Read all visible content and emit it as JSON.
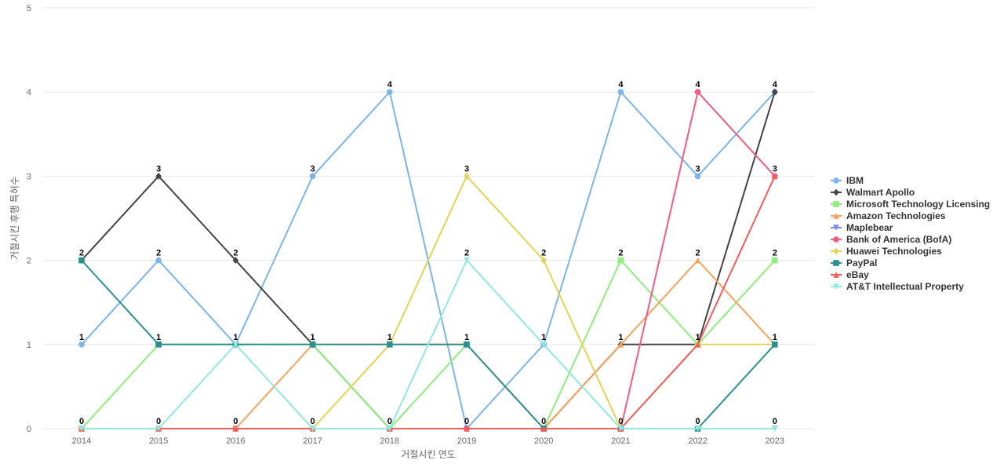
{
  "chart_data": {
    "type": "line",
    "xlabel": "거절시킨 연도",
    "ylabel": "거절시킨 후행 특허수",
    "ylim": [
      0,
      5
    ],
    "yticks": [
      0,
      1,
      2,
      3,
      4,
      5
    ],
    "categories": [
      "2014",
      "2015",
      "2016",
      "2017",
      "2018",
      "2019",
      "2020",
      "2021",
      "2022",
      "2023"
    ],
    "grid": true,
    "legend_position": "right",
    "series": [
      {
        "name": "IBM",
        "color": "#7cb5ec",
        "marker": "circle",
        "values": [
          1,
          2,
          1,
          3,
          4,
          0,
          1,
          4,
          3,
          4
        ]
      },
      {
        "name": "Walmart Apollo",
        "color": "#434348",
        "marker": "diamond",
        "values": [
          2,
          3,
          2,
          1,
          0,
          0,
          0,
          1,
          1,
          4
        ]
      },
      {
        "name": "Microsoft Technology Licensing",
        "color": "#90ed7d",
        "marker": "square",
        "values": [
          0,
          1,
          1,
          1,
          0,
          1,
          0,
          2,
          1,
          2
        ]
      },
      {
        "name": "Amazon Technologies",
        "color": "#f7a35c",
        "marker": "triangle",
        "values": [
          0,
          0,
          0,
          1,
          1,
          1,
          0,
          1,
          2,
          1
        ]
      },
      {
        "name": "Maplebear",
        "color": "#8085e9",
        "marker": "triangle-down",
        "values": [
          0,
          0,
          0,
          0,
          0,
          0,
          0,
          0,
          0,
          0
        ]
      },
      {
        "name": "Bank of America (BofA)",
        "color": "#f15c80",
        "marker": "circle",
        "values": [
          0,
          0,
          0,
          0,
          0,
          0,
          0,
          0,
          4,
          3
        ]
      },
      {
        "name": "Huawei Technologies",
        "color": "#e4d354",
        "marker": "diamond",
        "values": [
          0,
          0,
          0,
          0,
          1,
          3,
          2,
          0,
          1,
          1
        ]
      },
      {
        "name": "PayPal",
        "color": "#2b908f",
        "marker": "square",
        "values": [
          2,
          1,
          1,
          1,
          1,
          1,
          0,
          0,
          0,
          1
        ]
      },
      {
        "name": "eBay",
        "color": "#f45b5b",
        "marker": "triangle",
        "values": [
          0,
          0,
          0,
          0,
          0,
          0,
          0,
          0,
          1,
          3
        ]
      },
      {
        "name": "AT&T Intellectual Property",
        "color": "#91e8e1",
        "marker": "triangle-down",
        "values": [
          0,
          0,
          1,
          0,
          0,
          2,
          1,
          0,
          0,
          0
        ]
      }
    ],
    "data_labels": [
      {
        "x": "2014",
        "value": 2,
        "text": "2"
      },
      {
        "x": "2014",
        "value": 1,
        "text": "1"
      },
      {
        "x": "2014",
        "value": 0,
        "text": "0"
      },
      {
        "x": "2015",
        "value": 3,
        "text": "3"
      },
      {
        "x": "2015",
        "value": 2,
        "text": "2"
      },
      {
        "x": "2015",
        "value": 1,
        "text": "1"
      },
      {
        "x": "2015",
        "value": 0,
        "text": "0"
      },
      {
        "x": "2016",
        "value": 2,
        "text": "2"
      },
      {
        "x": "2016",
        "value": 1,
        "text": "1"
      },
      {
        "x": "2016",
        "value": 0,
        "text": "0"
      },
      {
        "x": "2017",
        "value": 3,
        "text": "3"
      },
      {
        "x": "2017",
        "value": 1,
        "text": "1"
      },
      {
        "x": "2017",
        "value": 0,
        "text": "0"
      },
      {
        "x": "2018",
        "value": 4,
        "text": "4"
      },
      {
        "x": "2018",
        "value": 1,
        "text": "1"
      },
      {
        "x": "2018",
        "value": 0,
        "text": "0"
      },
      {
        "x": "2019",
        "value": 3,
        "text": "3"
      },
      {
        "x": "2019",
        "value": 2,
        "text": "2"
      },
      {
        "x": "2019",
        "value": 1,
        "text": "1"
      },
      {
        "x": "2019",
        "value": 0,
        "text": "0"
      },
      {
        "x": "2020",
        "value": 2,
        "text": "2"
      },
      {
        "x": "2020",
        "value": 1,
        "text": "1"
      },
      {
        "x": "2020",
        "value": 0,
        "text": "0"
      },
      {
        "x": "2021",
        "value": 4,
        "text": "4"
      },
      {
        "x": "2021",
        "value": 2,
        "text": "2"
      },
      {
        "x": "2021",
        "value": 1,
        "text": "1"
      },
      {
        "x": "2021",
        "value": 0,
        "text": "0"
      },
      {
        "x": "2022",
        "value": 4,
        "text": "4"
      },
      {
        "x": "2022",
        "value": 3,
        "text": "3"
      },
      {
        "x": "2022",
        "value": 2,
        "text": "2"
      },
      {
        "x": "2022",
        "value": 1,
        "text": "1"
      },
      {
        "x": "2022",
        "value": 0,
        "text": "0"
      },
      {
        "x": "2023",
        "value": 4,
        "text": "4"
      },
      {
        "x": "2023",
        "value": 3,
        "text": "3"
      },
      {
        "x": "2023",
        "value": 2,
        "text": "2"
      },
      {
        "x": "2023",
        "value": 1,
        "text": "1"
      },
      {
        "x": "2023",
        "value": 0,
        "text": "0"
      }
    ]
  }
}
